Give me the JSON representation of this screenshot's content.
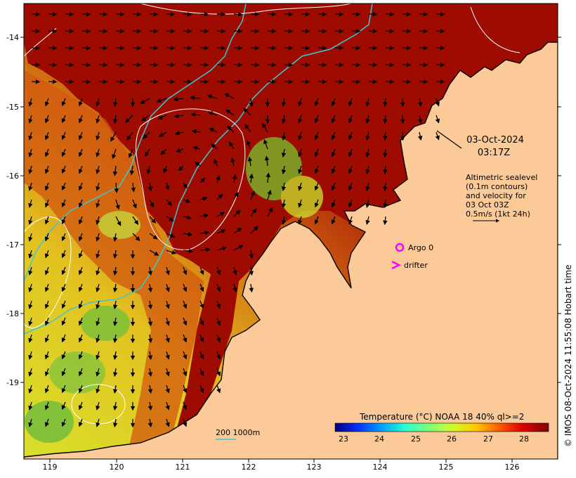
{
  "map": {
    "date": "03-Oct-2024",
    "time": "03:17Z",
    "legend_lines": [
      "Altimetric sealevel",
      "(0.1m contours)",
      "and velocity for",
      "03 Oct 03Z",
      "0.5m/s (1kt 24h)"
    ],
    "argo_label": "Argo 0",
    "drifter_label": "drifter",
    "bathymetry_label": "200  1000m",
    "colorbar_title": "Temperature (°C) NOAA 18 40% ql>=2",
    "colorbar_ticks": [
      "23",
      "24",
      "25",
      "26",
      "27",
      "28"
    ],
    "credit": "© IMOS 08-Oct-2024 11:55:08 Hobart time",
    "x_ticks": [
      "119",
      "120",
      "121",
      "122",
      "123",
      "124",
      "125",
      "126"
    ],
    "y_ticks": [
      "-14",
      "-15",
      "-16",
      "-17",
      "-18",
      "-19"
    ],
    "colors": {
      "land": "#fcc998",
      "warm": "#9e0b00",
      "argo": "#ff00ff",
      "drifter": "#ff00ff",
      "isobath": "#3fc6d2"
    },
    "colorbar_colors": [
      "#00007f",
      "#0032ff",
      "#00a4ff",
      "#29ffce",
      "#7dff7a",
      "#ceff29",
      "#ffc600",
      "#ff5900",
      "#d90000",
      "#7f0000"
    ]
  }
}
